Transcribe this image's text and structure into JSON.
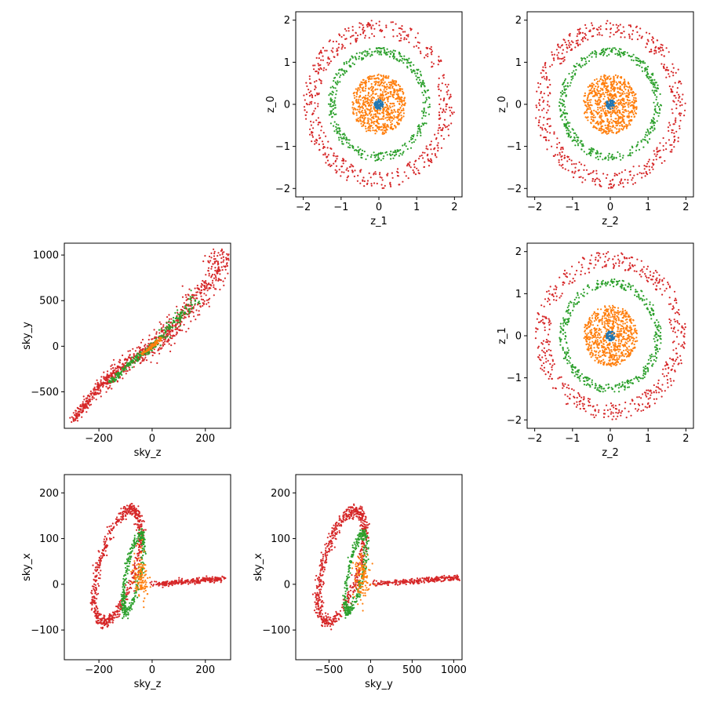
{
  "figure": {
    "grid": "3x3 pairwise scatter matrix",
    "empty_cells": [
      "row1-col1",
      "row2-col2",
      "row3-col3"
    ]
  },
  "colors": {
    "blue": "#1f77b4",
    "orange": "#ff7f0e",
    "green": "#2ca02c",
    "red": "#d62728"
  },
  "chart_data": [
    {
      "id": "z0_vs_z1",
      "type": "scatter",
      "xlabel": "z_1",
      "ylabel": "z_0",
      "xlim": [
        -2.2,
        2.2
      ],
      "ylim": [
        -2.2,
        2.2
      ],
      "xticks": [
        -2,
        -1,
        0,
        1,
        2
      ],
      "yticks": [
        -2,
        -1,
        0,
        1,
        2
      ],
      "series": [
        {
          "color": "#d62728",
          "shape": "ring",
          "radius": [
            1.6,
            2.0
          ],
          "count": 520
        },
        {
          "color": "#2ca02c",
          "shape": "ring",
          "radius": [
            1.15,
            1.35
          ],
          "count": 420
        },
        {
          "color": "#ff7f0e",
          "shape": "disk",
          "radius": [
            0.0,
            0.72
          ],
          "count": 700
        },
        {
          "color": "#1f77b4",
          "shape": "disk",
          "radius": [
            0.0,
            0.12
          ],
          "count": 60
        }
      ]
    },
    {
      "id": "z0_vs_z2",
      "type": "scatter",
      "xlabel": "z_2",
      "ylabel": "z_0",
      "xlim": [
        -2.2,
        2.2
      ],
      "ylim": [
        -2.2,
        2.2
      ],
      "xticks": [
        -2,
        -1,
        0,
        1,
        2
      ],
      "yticks": [
        -2,
        -1,
        0,
        1,
        2
      ],
      "series": [
        {
          "color": "#d62728",
          "shape": "ring",
          "radius": [
            1.6,
            2.0
          ],
          "count": 520
        },
        {
          "color": "#2ca02c",
          "shape": "ring",
          "radius": [
            1.15,
            1.35
          ],
          "count": 420
        },
        {
          "color": "#ff7f0e",
          "shape": "disk",
          "radius": [
            0.0,
            0.72
          ],
          "count": 700
        },
        {
          "color": "#1f77b4",
          "shape": "disk",
          "radius": [
            0.0,
            0.12
          ],
          "count": 60
        }
      ]
    },
    {
      "id": "z1_vs_z2",
      "type": "scatter",
      "xlabel": "z_2",
      "ylabel": "z_1",
      "xlim": [
        -2.2,
        2.2
      ],
      "ylim": [
        -2.2,
        2.2
      ],
      "xticks": [
        -2,
        -1,
        0,
        1,
        2
      ],
      "yticks": [
        -2,
        -1,
        0,
        1,
        2
      ],
      "series": [
        {
          "color": "#d62728",
          "shape": "ring",
          "radius": [
            1.6,
            2.0
          ],
          "count": 520
        },
        {
          "color": "#2ca02c",
          "shape": "ring",
          "radius": [
            1.15,
            1.35
          ],
          "count": 420
        },
        {
          "color": "#ff7f0e",
          "shape": "disk",
          "radius": [
            0.0,
            0.72
          ],
          "count": 700
        },
        {
          "color": "#1f77b4",
          "shape": "disk",
          "radius": [
            0.0,
            0.12
          ],
          "count": 60
        }
      ]
    },
    {
      "id": "skyy_vs_skyz",
      "type": "scatter",
      "xlabel": "sky_z",
      "ylabel": "sky_y",
      "xlim": [
        -330,
        295
      ],
      "ylim": [
        -900,
        1130
      ],
      "xticks": [
        -200,
        0,
        200
      ],
      "yticks": [
        -500,
        0,
        500,
        1000
      ],
      "series": [
        {
          "color": "#d62728",
          "shape": "band",
          "path": [
            [
              -300,
              -820
            ],
            [
              -200,
              -450
            ],
            [
              -100,
              -200
            ],
            [
              0,
              0
            ],
            [
              100,
              250
            ],
            [
              200,
              650
            ],
            [
              270,
              1000
            ]
          ],
          "width": [
            0.03,
            0.12
          ],
          "count": 900
        },
        {
          "color": "#2ca02c",
          "shape": "band",
          "path": [
            [
              -160,
              -400
            ],
            [
              -80,
              -180
            ],
            [
              0,
              0
            ],
            [
              80,
              250
            ],
            [
              170,
              550
            ]
          ],
          "width": [
            0.02,
            0.05
          ],
          "count": 300
        },
        {
          "color": "#ff7f0e",
          "shape": "band",
          "path": [
            [
              -40,
              -90
            ],
            [
              0,
              0
            ],
            [
              40,
              100
            ]
          ],
          "width": [
            0.01,
            0.02
          ],
          "count": 80
        }
      ]
    },
    {
      "id": "skyx_vs_skyz",
      "type": "scatter",
      "xlabel": "sky_z",
      "ylabel": "sky_x",
      "xlim": [
        -330,
        295
      ],
      "ylim": [
        -165,
        240
      ],
      "xticks": [
        -200,
        0,
        200
      ],
      "yticks": [
        -100,
        0,
        100,
        200
      ],
      "series": [
        {
          "color": "#d62728",
          "shape": "loop",
          "center": [
            -130,
            40
          ],
          "arm": [
            [
              0,
              0
            ],
            [
              270,
              12
            ]
          ],
          "count": 900
        },
        {
          "color": "#2ca02c",
          "shape": "loop_small",
          "center": [
            -70,
            25
          ],
          "count": 320
        },
        {
          "color": "#ff7f0e",
          "shape": "blob",
          "center": [
            -40,
            15
          ],
          "count": 120
        }
      ]
    },
    {
      "id": "skyx_vs_skyy",
      "type": "scatter",
      "xlabel": "sky_y",
      "ylabel": "sky_x",
      "xlim": [
        -900,
        1100
      ],
      "ylim": [
        -165,
        240
      ],
      "xticks": [
        -500,
        0,
        500,
        1000
      ],
      "yticks": [
        -100,
        0,
        100,
        200
      ],
      "series": [
        {
          "color": "#d62728",
          "shape": "loop",
          "center": [
            -350,
            40
          ],
          "arm": [
            [
              0,
              0
            ],
            [
              1050,
              15
            ]
          ],
          "count": 900
        },
        {
          "color": "#2ca02c",
          "shape": "loop_small",
          "center": [
            -180,
            25
          ],
          "count": 320
        },
        {
          "color": "#ff7f0e",
          "shape": "blob",
          "center": [
            -100,
            15
          ],
          "count": 120
        }
      ]
    }
  ]
}
